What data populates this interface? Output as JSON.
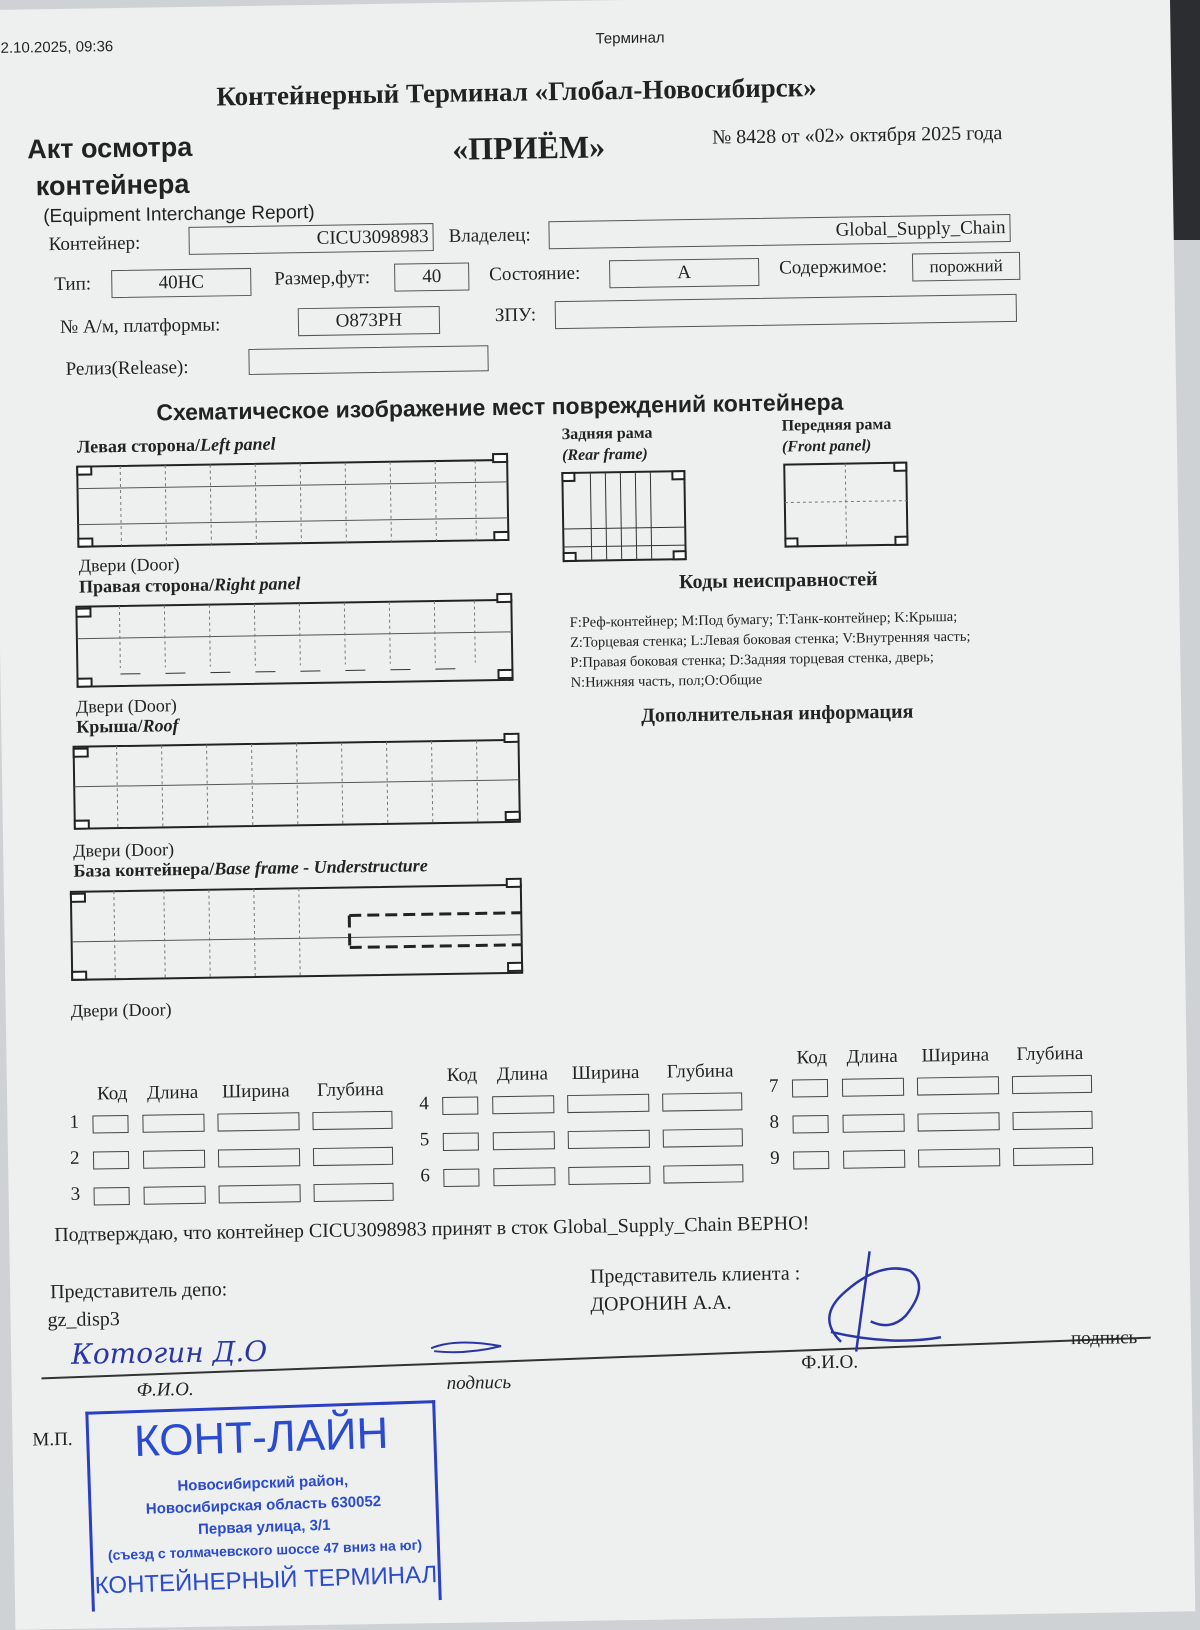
{
  "header": {
    "datetime": "2.10.2025, 09:36",
    "page_title": "Терминал"
  },
  "doc": {
    "company": "Контейнерный Терминал «Глобал-Новосибирск»",
    "title_line1": "Акт осмотра",
    "title_line2": "контейнера",
    "subtitle": "(Equipment Interchange Report)",
    "type": "«ПРИЁМ»",
    "number": "№ 8428 от «02» октября 2025 года"
  },
  "fields": {
    "container_label": "Контейнер:",
    "container": "CICU3098983",
    "owner_label": "Владелец:",
    "owner": "Global_Supply_Chain",
    "type_label": "Тип:",
    "type": "40HC",
    "size_label": "Размер,фут:",
    "size": "40",
    "condition_label": "Состояние:",
    "condition": "A",
    "contents_label": "Содержимое:",
    "contents": "порожний",
    "vehicle_label": "№ А/м, платформы:",
    "vehicle": "О873РН",
    "seal_label": "ЗПУ:",
    "seal": "",
    "release_label": "Релиз(Release):",
    "release": ""
  },
  "schematic": {
    "title": "Схематическое изображение мест повреждений контейнера",
    "left_panel": "Левая сторона/",
    "left_panel_en": "Left panel",
    "right_panel": "Правая сторона/",
    "right_panel_en": "Right panel",
    "roof": "Крыша/",
    "roof_en": "Roof",
    "base": "База контейнера/",
    "base_en": "Base frame - Understructure",
    "door": "Двери (Door)",
    "rear_frame": "Задняя рама",
    "rear_frame_en": "(Rear frame)",
    "front_frame": "Передняя рама",
    "front_frame_en": "(Front panel)"
  },
  "codes": {
    "title": "Коды неисправностей",
    "lines": [
      "F:Реф-контейнер; M:Под бумагу; T:Танк-контейнер; K:Крыша;",
      "Z:Торцевая стенка; L:Левая боковая стенка; V:Внутренняя часть;",
      "P:Правая боковая стенка; D:Задняя торцевая стенка, дверь;",
      "N:Нижняя часть, пол;O:Общие"
    ]
  },
  "additional_info": "Дополнительная информация",
  "damage_table": {
    "headers": [
      "Код",
      "Длина",
      "Ширина",
      "Глубина"
    ],
    "rows": [
      "1",
      "2",
      "3",
      "4",
      "5",
      "6",
      "7",
      "8",
      "9"
    ]
  },
  "confirmation": "Подтверждаю, что контейнер  CICU3098983 принят в сток  Global_Supply_Chain ВЕРНО!",
  "signatures": {
    "depot_rep_label": "Представитель депо:",
    "depot_rep": "gz_disp3",
    "depot_handwritten": "Котогин Д.О",
    "client_rep_label": "Представитель клиента :",
    "client_rep": "ДОРОНИН А.А.",
    "fio": "Ф.И.О.",
    "signature": "подпись",
    "mp": "М.П."
  },
  "stamp": {
    "name": "КОНТ-ЛАЙН",
    "lines": [
      "Новосибирский район,",
      "Новосибирская область 630052",
      "Первая улица, 3/1",
      "(съезд с толмачевского шоссе 47 вниз на юг)"
    ],
    "footer": "КОНТЕЙНЕРНЫЙ ТЕРМИНАЛ"
  },
  "colors": {
    "ink": "#222222",
    "stamp_blue": "#2a4bd0",
    "pen_blue": "#2a36a8"
  }
}
